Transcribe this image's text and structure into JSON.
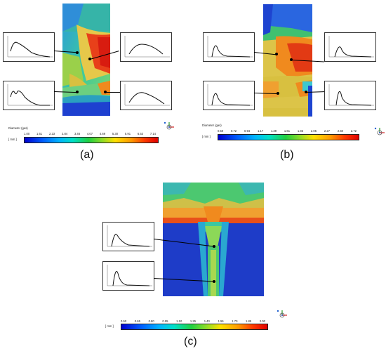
{
  "panels": [
    {
      "id": "a",
      "caption": "(a)",
      "legend": {
        "title": "Diameter (gas)",
        "unit": "[ mm ]",
        "ticks": [
          "1.00",
          "1.61",
          "2.23",
          "2.84",
          "3.46",
          "4.07",
          "4.69",
          "5.30",
          "5.91",
          "6.53",
          "7.14"
        ]
      }
    },
    {
      "id": "b",
      "caption": "(b)",
      "legend": {
        "title": "Diameter (gas)",
        "unit": "[ mm ]",
        "ticks": [
          "0.50",
          "0.72",
          "0.94",
          "1.17",
          "1.39",
          "1.61",
          "1.83",
          "2.05",
          "2.27",
          "2.50",
          "2.72"
        ]
      }
    },
    {
      "id": "c",
      "caption": "(c)",
      "legend": {
        "title": "",
        "unit": "[ mm ]",
        "ticks": [
          "0.50",
          "0.65",
          "0.80",
          "0.95",
          "1.10",
          "1.25",
          "1.40",
          "1.55",
          "1.70",
          "1.85",
          "2.00"
        ]
      }
    }
  ],
  "colors": {
    "deep_blue": "#1a36c8",
    "green": "#3cc860",
    "yellow": "#d8d84a",
    "orange": "#f08a1e",
    "red": "#e02010"
  }
}
